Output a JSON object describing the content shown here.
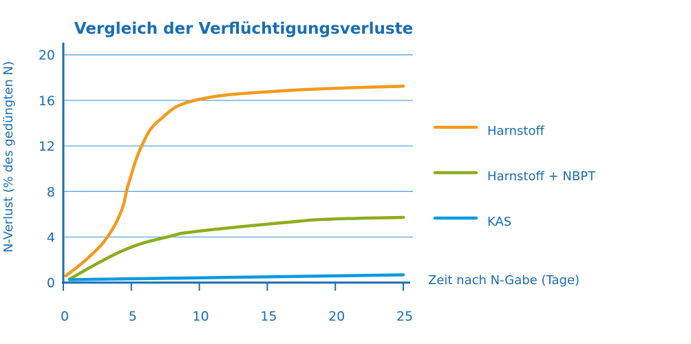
{
  "chart_data": {
    "type": "line",
    "title": "Vergleich der Verflüchtigungsverluste",
    "xlabel": "Zeit nach N-Gabe (Tage)",
    "ylabel": "N-Verlust (% des gedüngten N)",
    "xlim": [
      0,
      25
    ],
    "ylim": [
      0,
      20
    ],
    "xticks": [
      0,
      5,
      10,
      15,
      20,
      25
    ],
    "yticks": [
      0,
      4,
      8,
      12,
      16,
      20
    ],
    "grid": "horizontal",
    "legend_position": "right",
    "series": [
      {
        "name": "Harnstoff",
        "color": "#f39a1e",
        "x": [
          0.2,
          1.9,
          3.3,
          4.3,
          4.8,
          5.8,
          7.15,
          9.85,
          16.25,
          25
        ],
        "y": [
          0.6,
          2.25,
          4.1,
          6.4,
          8.7,
          12.1,
          14.35,
          16.05,
          16.85,
          17.25
        ]
      },
      {
        "name": "Harnstoff + NBPT",
        "color": "#8cad1c",
        "x": [
          0.45,
          4.45,
          7.8,
          9.85,
          16.25,
          19.6,
          25
        ],
        "y": [
          0.3,
          2.85,
          4.05,
          4.5,
          5.27,
          5.57,
          5.72
        ]
      },
      {
        "name": "KAS",
        "color": "#0a9be0",
        "x": [
          0.45,
          25
        ],
        "y": [
          0.25,
          0.68
        ]
      }
    ],
    "axis_color": "#1a6db3",
    "grid_color": "#1a6db3"
  }
}
